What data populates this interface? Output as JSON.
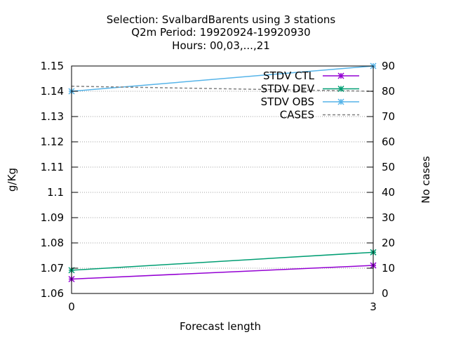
{
  "title": {
    "line1": "Selection: SvalbardBarents using     3 stations",
    "line2": "Q2m   Period: 19920924-19920930",
    "line3": "Hours:  00,03,...,21"
  },
  "chart_data": {
    "type": "line",
    "xlabel": "Forecast length",
    "ylabel": "g/Kg",
    "y2label": "No cases",
    "x": [
      0,
      3
    ],
    "xlim": [
      0,
      3
    ],
    "xticks": [
      "0",
      "3"
    ],
    "ylim": [
      1.06,
      1.15
    ],
    "yticks": [
      "1.06",
      "1.07",
      "1.08",
      "1.09",
      "1.1",
      "1.11",
      "1.12",
      "1.13",
      "1.14",
      "1.15"
    ],
    "y2lim": [
      0,
      90
    ],
    "y2ticks": [
      "0",
      "10",
      "20",
      "30",
      "40",
      "50",
      "60",
      "70",
      "80",
      "90"
    ],
    "grid": true,
    "legend_position": "top-right",
    "series": [
      {
        "name": "STDV CTL",
        "axis": "left",
        "values": [
          1.0657,
          1.0711
        ],
        "color": "#9400d3",
        "marker": "star"
      },
      {
        "name": "STDV DEV",
        "axis": "left",
        "values": [
          1.0692,
          1.0763
        ],
        "color": "#009e73",
        "marker": "star"
      },
      {
        "name": "STDV OBS",
        "axis": "left",
        "values": [
          1.14,
          1.15
        ],
        "color": "#56b4e9",
        "marker": "star"
      },
      {
        "name": "CASES",
        "axis": "right",
        "values": [
          82,
          80
        ],
        "color": "#808080",
        "dashed": true
      }
    ]
  }
}
